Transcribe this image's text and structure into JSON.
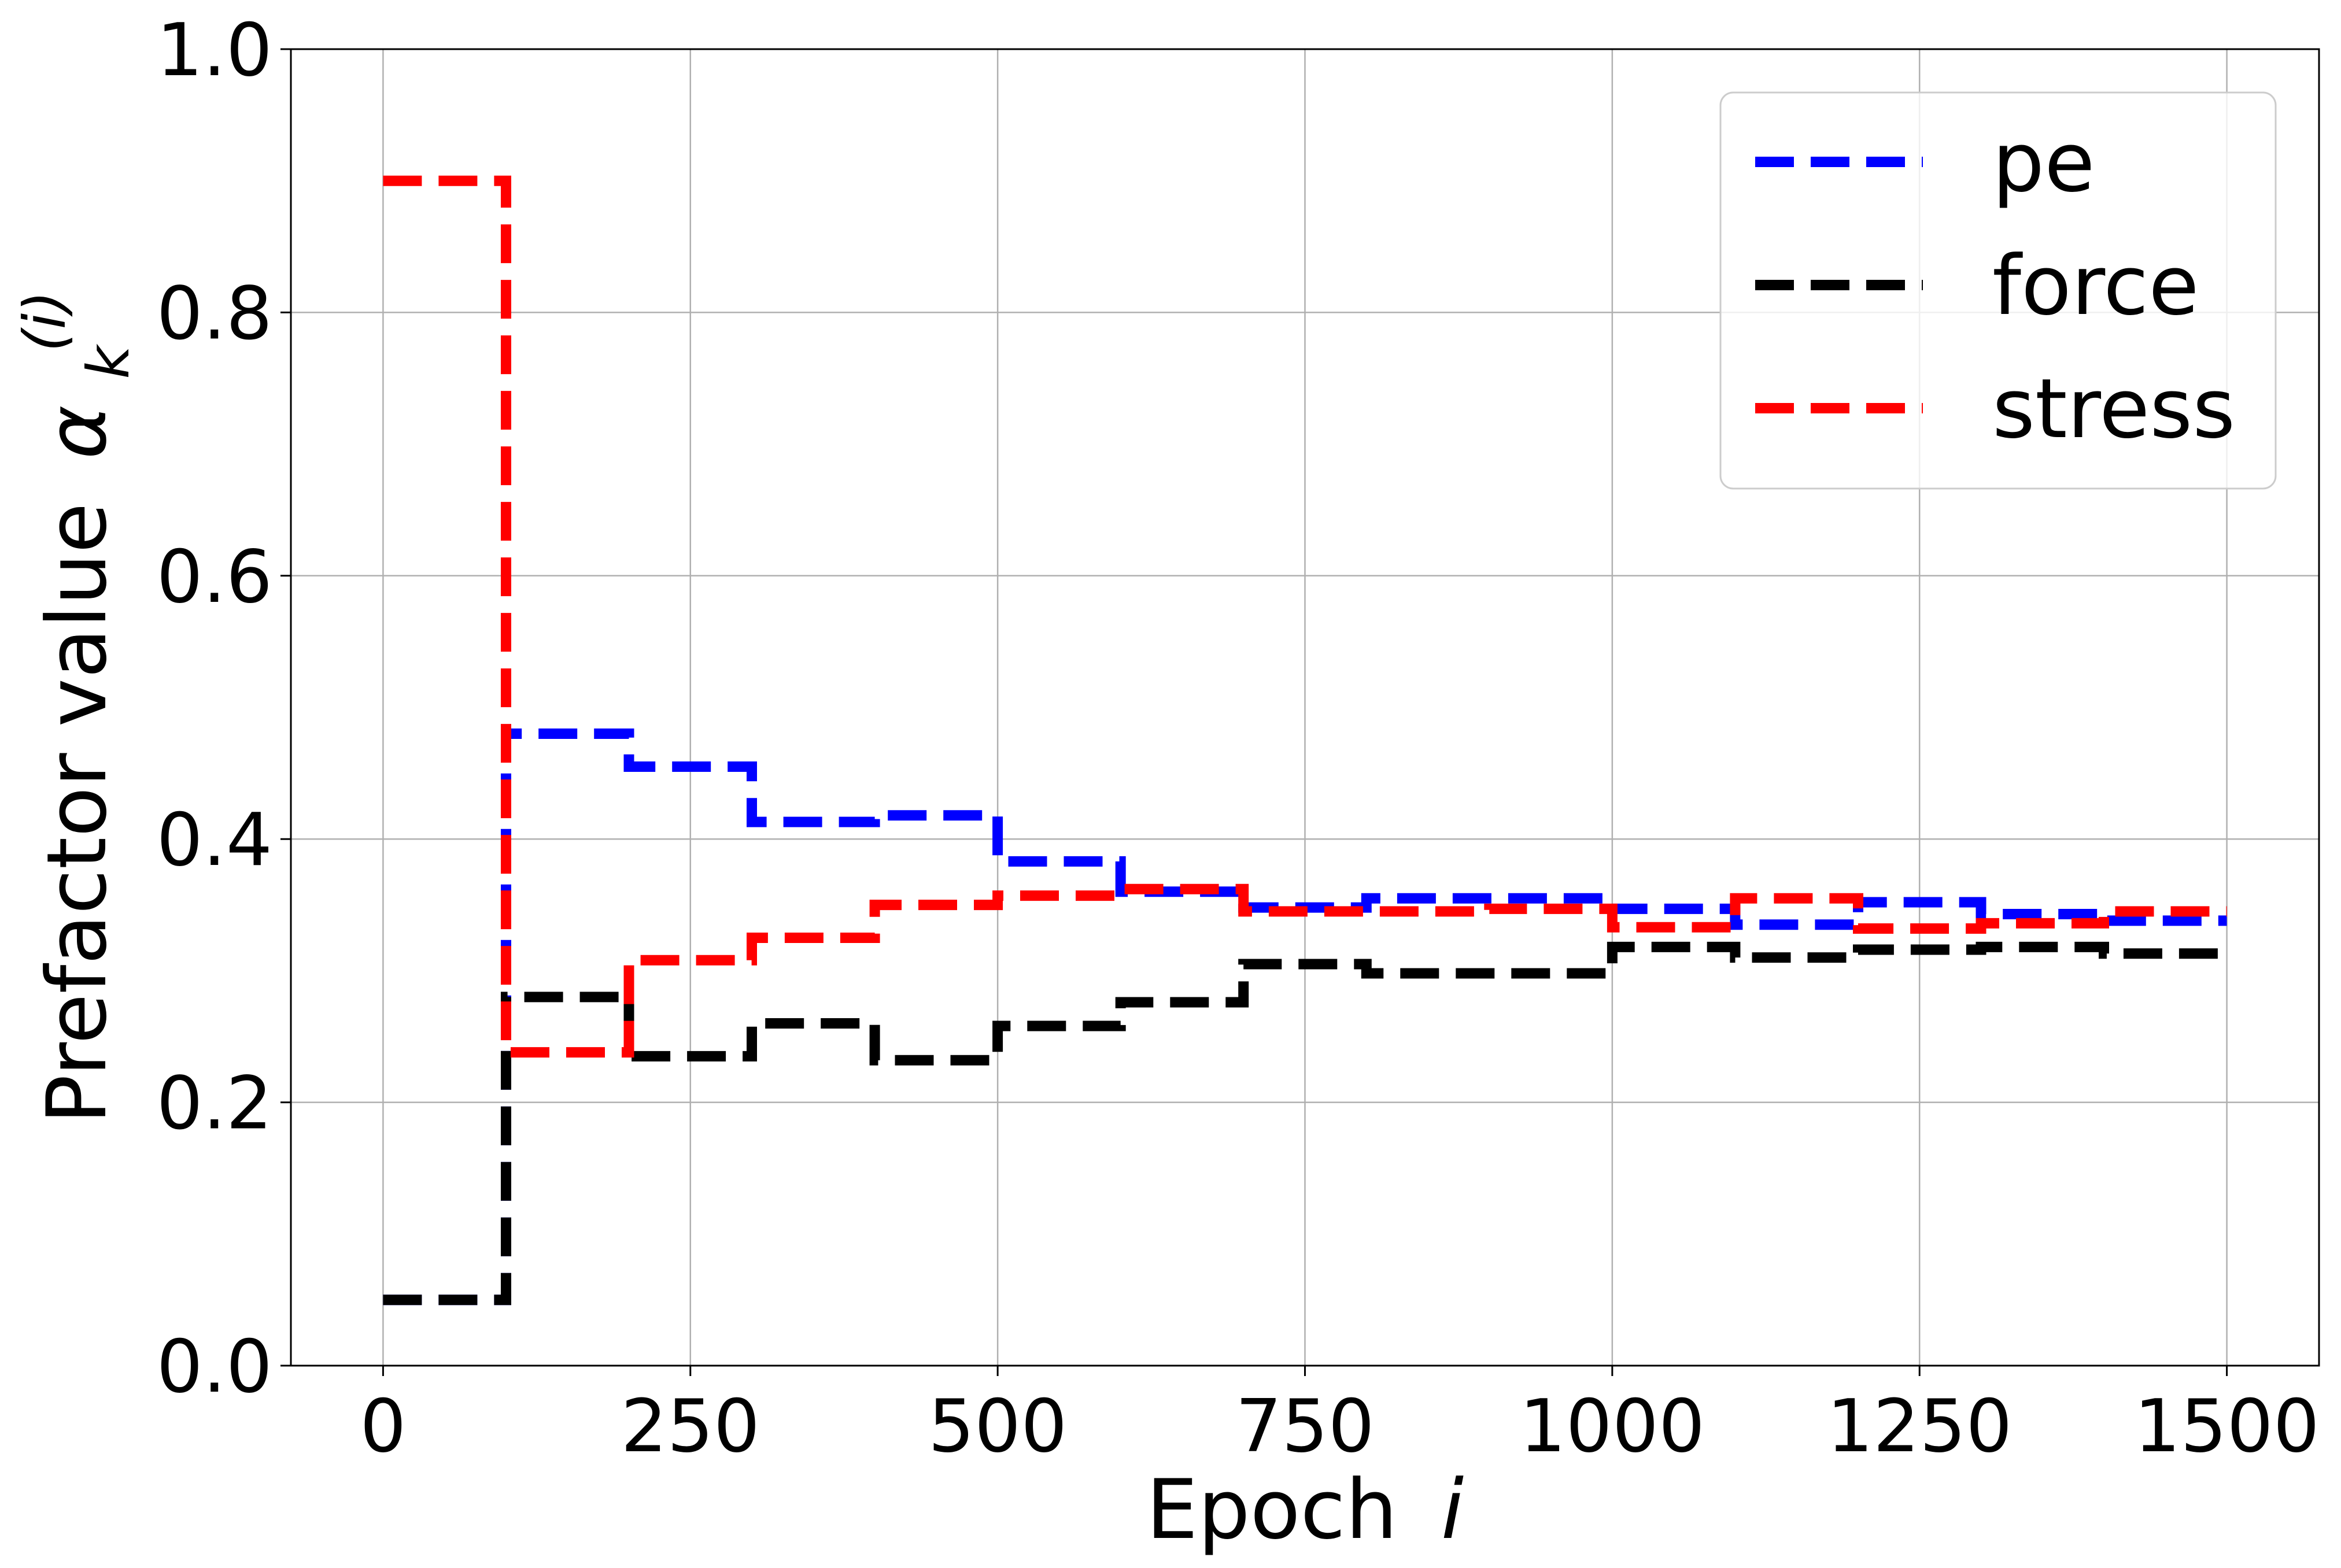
{
  "chart_data": {
    "type": "line",
    "xlabel": "Epoch",
    "xlabel_var": "i",
    "ylabel": "Prefactor value",
    "ylabel_symbol": "α",
    "ylabel_sub": "k",
    "ylabel_sup": "(i)",
    "xlim": [
      -75,
      1575
    ],
    "ylim": [
      0.0,
      1.0
    ],
    "xticks": [
      0,
      250,
      500,
      750,
      1000,
      1250,
      1500
    ],
    "xtick_labels": [
      "0",
      "250",
      "500",
      "750",
      "1000",
      "1250",
      "1500"
    ],
    "yticks": [
      0.0,
      0.2,
      0.4,
      0.6,
      0.8,
      1.0
    ],
    "ytick_labels": [
      "0.0",
      "0.2",
      "0.4",
      "0.6",
      "0.8",
      "1.0"
    ],
    "grid": true,
    "legend_position": "top-right",
    "line_style": "dashed step",
    "series": [
      {
        "name": "pe",
        "color": "#0000ff",
        "x": [
          0,
          100,
          100,
          200,
          200,
          300,
          300,
          400,
          400,
          500,
          500,
          600,
          600,
          700,
          700,
          800,
          800,
          900,
          900,
          1000,
          1000,
          1100,
          1100,
          1200,
          1200,
          1300,
          1300,
          1400,
          1400,
          1500
        ],
        "y": [
          0.05,
          0.05,
          0.48,
          0.48,
          0.455,
          0.455,
          0.413,
          0.413,
          0.418,
          0.418,
          0.383,
          0.383,
          0.36,
          0.36,
          0.348,
          0.348,
          0.355,
          0.355,
          0.355,
          0.355,
          0.347,
          0.347,
          0.335,
          0.335,
          0.352,
          0.352,
          0.343,
          0.343,
          0.338,
          0.338
        ]
      },
      {
        "name": "force",
        "color": "#000000",
        "x": [
          0,
          100,
          100,
          200,
          200,
          300,
          300,
          400,
          400,
          500,
          500,
          600,
          600,
          700,
          700,
          800,
          800,
          900,
          900,
          1000,
          1000,
          1100,
          1100,
          1200,
          1200,
          1300,
          1300,
          1400,
          1400,
          1500
        ],
        "y": [
          0.05,
          0.05,
          0.28,
          0.28,
          0.235,
          0.235,
          0.26,
          0.26,
          0.232,
          0.232,
          0.258,
          0.258,
          0.276,
          0.276,
          0.305,
          0.305,
          0.298,
          0.298,
          0.298,
          0.298,
          0.318,
          0.318,
          0.31,
          0.31,
          0.316,
          0.316,
          0.318,
          0.318,
          0.313,
          0.313
        ]
      },
      {
        "name": "stress",
        "color": "#ff0000",
        "x": [
          0,
          100,
          100,
          200,
          200,
          300,
          300,
          400,
          400,
          500,
          500,
          600,
          600,
          700,
          700,
          800,
          800,
          900,
          900,
          1000,
          1000,
          1100,
          1100,
          1200,
          1200,
          1300,
          1300,
          1400,
          1400,
          1500
        ],
        "y": [
          0.9,
          0.9,
          0.238,
          0.238,
          0.308,
          0.308,
          0.325,
          0.325,
          0.35,
          0.35,
          0.357,
          0.357,
          0.362,
          0.362,
          0.345,
          0.345,
          0.345,
          0.345,
          0.347,
          0.347,
          0.333,
          0.333,
          0.355,
          0.355,
          0.332,
          0.332,
          0.336,
          0.336,
          0.345,
          0.345
        ]
      }
    ]
  }
}
